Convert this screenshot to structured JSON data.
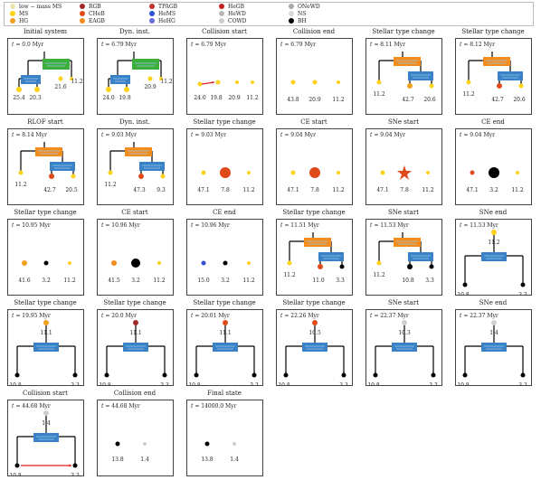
{
  "legend": [
    {
      "label": "low − mass MS",
      "color": "#e8e4b0",
      "shape": "dot"
    },
    {
      "label": "MS",
      "color": "#ffd21a",
      "shape": "dot"
    },
    {
      "label": "HG",
      "color": "#f0a020",
      "shape": "dot"
    },
    {
      "label": "RGB",
      "color": "#a02828",
      "shape": "dot"
    },
    {
      "label": "CHeB",
      "color": "#e04a1a",
      "shape": "dot"
    },
    {
      "label": "EAGB",
      "color": "#f28c1c",
      "shape": "dot"
    },
    {
      "label": "TPAGB",
      "color": "#c43030",
      "shape": "dot"
    },
    {
      "label": "HeMS",
      "color": "#3050d8",
      "shape": "dot"
    },
    {
      "label": "HeHG",
      "color": "#6a6ae0",
      "shape": "dot"
    },
    {
      "label": "HeGB",
      "color": "#c02020",
      "shape": "dot"
    },
    {
      "label": "HeWD",
      "color": "#b8b8b8",
      "shape": "dot"
    },
    {
      "label": "COWD",
      "color": "#cccccc",
      "shape": "dot"
    },
    {
      "label": "ONeWD",
      "color": "#a8a8a8",
      "shape": "dot"
    },
    {
      "label": "NS",
      "color": "#d8d8d8",
      "shape": "dot"
    },
    {
      "label": "BH",
      "color": "#000000",
      "shape": "dot"
    }
  ],
  "time_prefix": "t ≃ ",
  "panels": [
    {
      "title": "Initial system",
      "time": "0.0 Myr",
      "masses": [
        "25.4",
        "20.3",
        "21.6",
        "11.2"
      ],
      "layout": "triple"
    },
    {
      "title": "Dyn. inst.",
      "time": "6.79 Myr",
      "masses": [
        "24.0",
        "19.8",
        "20.9",
        "11.2"
      ],
      "layout": "triple"
    },
    {
      "title": "Collision start",
      "time": "6.79 Myr",
      "masses": [
        "24.0",
        "19.8",
        "20.9",
        "11.2"
      ],
      "layout": "unbound4"
    },
    {
      "title": "Collision end",
      "time": "6.79 Myr",
      "masses": [
        "43.8",
        "20.9",
        "11.2"
      ],
      "layout": "unbound3"
    },
    {
      "title": "Stellar type change",
      "time": "8.11 Myr",
      "masses": [
        "11.2",
        "42.7",
        "20.6"
      ],
      "layout": "binary"
    },
    {
      "title": "Stellar type change",
      "time": "8.12 Myr",
      "masses": [
        "11.2",
        "42.7",
        "20.6"
      ],
      "layout": "binary"
    },
    {
      "title": "RLOF start",
      "time": "8.14 Myr",
      "masses": [
        "11.2",
        "42.7",
        "20.5"
      ],
      "layout": "binary"
    },
    {
      "title": "Dyn. inst.",
      "time": "9.03 Myr",
      "masses": [
        "11.2",
        "47.3",
        "9.3"
      ],
      "layout": "binary"
    },
    {
      "title": "Stellar type change",
      "time": "9.03 Myr",
      "masses": [
        "47.1",
        "7.8",
        "11.2"
      ],
      "layout": "unbound3"
    },
    {
      "title": "CE start",
      "time": "9.04 Myr",
      "masses": [
        "47.1",
        "7.8",
        "11.2"
      ],
      "layout": "unbound3"
    },
    {
      "title": "SNe start",
      "time": "9.04 Myr",
      "masses": [
        "47.1",
        "7.8",
        "11.2"
      ],
      "layout": "unbound3"
    },
    {
      "title": "CE end",
      "time": "9.04 Myr",
      "masses": [
        "47.1",
        "3.2",
        "11.2"
      ],
      "layout": "unbound3"
    },
    {
      "title": "Stellar type change",
      "time": "10.95 Myr",
      "masses": [
        "41.6",
        "3.2",
        "11.2"
      ],
      "layout": "unbound3"
    },
    {
      "title": "CE start",
      "time": "10.96 Myr",
      "masses": [
        "41.5",
        "3.2",
        "11.2"
      ],
      "layout": "unbound3"
    },
    {
      "title": "CE end",
      "time": "10.96 Myr",
      "masses": [
        "15.0",
        "3.2",
        "11.2"
      ],
      "layout": "unbound3"
    },
    {
      "title": "Stellar type change",
      "time": "11.51 Myr",
      "masses": [
        "11.2",
        "11.0",
        "3.3"
      ],
      "layout": "binary"
    },
    {
      "title": "SNe start",
      "time": "11.53 Myr",
      "masses": [
        "11.2",
        "10.8",
        "3.3"
      ],
      "layout": "binary"
    },
    {
      "title": "SNe end",
      "time": "11.53 Myr",
      "masses": [
        "11.2",
        "10.8",
        "3.3"
      ],
      "layout": "outer"
    },
    {
      "title": "Stellar type change",
      "time": "19.95 Myr",
      "masses": [
        "11.1",
        "10.8",
        "3.3"
      ],
      "layout": "outer"
    },
    {
      "title": "Stellar type change",
      "time": "20.0 Myr",
      "masses": [
        "11.1",
        "10.8",
        "3.3"
      ],
      "layout": "outer"
    },
    {
      "title": "Stellar type change",
      "time": "20.01 Myr",
      "masses": [
        "11.1",
        "10.8",
        "3.3"
      ],
      "layout": "outer"
    },
    {
      "title": "Stellar type change",
      "time": "22.26 Myr",
      "masses": [
        "10.5",
        "10.8",
        "3.3"
      ],
      "layout": "outer"
    },
    {
      "title": "SNe start",
      "time": "22.37 Myr",
      "masses": [
        "10.3",
        "10.8",
        "3.3"
      ],
      "layout": "outer"
    },
    {
      "title": "SNe end",
      "time": "22.37 Myr",
      "masses": [
        "1.4",
        "10.8",
        "3.3"
      ],
      "layout": "outer"
    },
    {
      "title": "Collision start",
      "time": "44.68 Myr",
      "masses": [
        "1.4",
        "10.8",
        "3.3"
      ],
      "layout": "outer"
    },
    {
      "title": "Collision end",
      "time": "44.68 Myr",
      "masses": [
        "13.8",
        "1.4"
      ],
      "layout": "unbound2"
    },
    {
      "title": "Final state",
      "time": "14000.0 Myr",
      "masses": [
        "13.8",
        "1.4"
      ],
      "layout": "unbound2"
    }
  ]
}
